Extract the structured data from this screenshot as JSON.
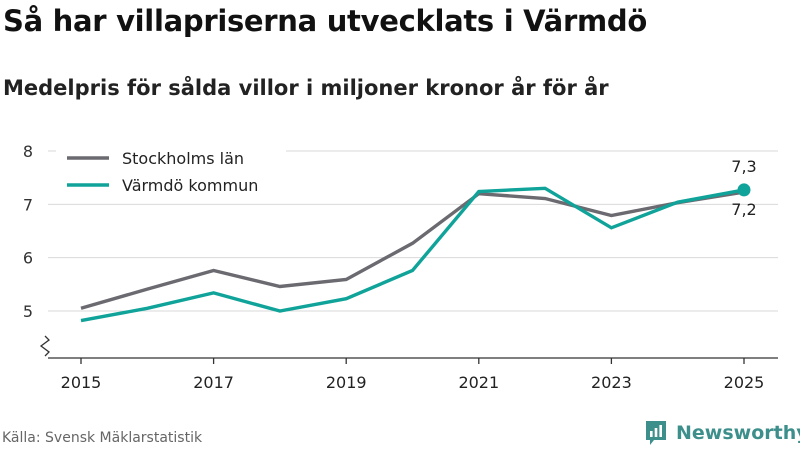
{
  "title": "Så har villapriserna utvecklats i Värmdö",
  "subtitle": "Medelpris för sålda villor i miljoner kronor år för år",
  "source": "Källa: Svensk Mäklarstatistik",
  "brand": "Newsworthy",
  "colors": {
    "stockholm": "#6b6a70",
    "varmdo": "#10a39a",
    "grid": "#d9d9d9",
    "axis": "#333333",
    "brand": "#3d8f8c"
  },
  "chart_data": {
    "type": "line",
    "title": "Så har villapriserna utvecklats i Värmdö",
    "subtitle": "Medelpris för sålda villor i miljoner kronor år för år",
    "xlabel": "",
    "ylabel": "",
    "x": [
      2015,
      2016,
      2017,
      2018,
      2019,
      2020,
      2021,
      2022,
      2023,
      2024,
      2025
    ],
    "x_ticks": [
      "2015",
      "2017",
      "2019",
      "2021",
      "2023",
      "2025"
    ],
    "y_ticks": [
      "8",
      "7",
      "6",
      "5"
    ],
    "ylim": [
      4.1,
      8
    ],
    "grid": true,
    "legend": "top-left",
    "series": [
      {
        "name": "Stockholms län",
        "key": "stockholm",
        "values": [
          5.05,
          5.41,
          5.76,
          5.46,
          5.59,
          6.27,
          7.2,
          7.11,
          6.79,
          7.03,
          7.23
        ],
        "end_label": "7,2"
      },
      {
        "name": "Värmdö kommun",
        "key": "varmdo",
        "values": [
          4.82,
          5.05,
          5.34,
          5.0,
          5.23,
          5.76,
          7.24,
          7.3,
          6.56,
          7.04,
          7.27
        ],
        "end_label": "7,3"
      }
    ]
  }
}
